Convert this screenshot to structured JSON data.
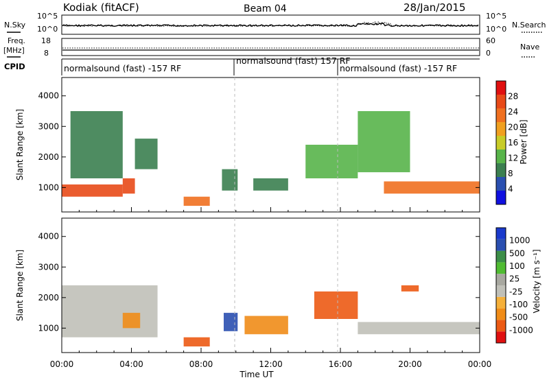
{
  "header": {
    "station": "Kodiak (fitACF)",
    "beam": "Beam 04",
    "date": "28/Jan/2015"
  },
  "panels": {
    "nsky": {
      "label": "N.Sky",
      "left_ticks": [
        "10^5",
        "10^0"
      ],
      "right_ticks": [
        "10^5",
        "10^0"
      ],
      "right_label": "N.Search"
    },
    "freq": {
      "label_line1": "Freq.",
      "label_line2": "[MHz]",
      "left_ticks": [
        "18",
        "8"
      ],
      "right_ticks": [
        "60",
        "0"
      ],
      "right_label": "Nave"
    },
    "cpid": {
      "label": "CPID",
      "segments": [
        {
          "text": "normalsound (fast) -157 RF",
          "start_hour": 0
        },
        {
          "text": "normalsound (fast) 157 RF",
          "start_hour": 10
        },
        {
          "text": "normalsound (fast) -157 RF",
          "start_hour": 16
        }
      ]
    }
  },
  "x_axis": {
    "label": "Time UT",
    "ticks": [
      "00:00",
      "04:00",
      "08:00",
      "12:00",
      "16:00",
      "20:00",
      "00:00"
    ]
  },
  "colors": {
    "power": [
      "#1010e0",
      "#2a4fb0",
      "#3b7f50",
      "#58b44a",
      "#c8cc28",
      "#f0a020",
      "#f07020",
      "#e84a18",
      "#e01010"
    ],
    "velocity": [
      "#e01010",
      "#ec5a14",
      "#f08c18",
      "#f5b03a",
      "#c0c0b8",
      "#a8a8a0",
      "#50bc32",
      "#3c8e48",
      "#2a4fb0",
      "#1a3acc"
    ]
  },
  "chart_data": [
    {
      "type": "heatmap",
      "title": "",
      "xlabel": "",
      "ylabel": "Slant Range [km]",
      "xlim": [
        0,
        24
      ],
      "ylim": [
        200,
        4600
      ],
      "y_ticks": [
        1000,
        2000,
        3000,
        4000
      ],
      "colorbar": {
        "label": "Power [dB]",
        "ticks": [
          4,
          8,
          12,
          16,
          20,
          24,
          28
        ],
        "range": [
          0,
          32
        ]
      },
      "features": [
        {
          "t": [
            0,
            3.5
          ],
          "range": [
            700,
            1100
          ],
          "value": 26
        },
        {
          "t": [
            3.5,
            4.2
          ],
          "range": [
            800,
            1300
          ],
          "value": 28
        },
        {
          "t": [
            4.2,
            5.5
          ],
          "range": [
            1600,
            2600
          ],
          "value": 10
        },
        {
          "t": [
            0.5,
            3.5
          ],
          "range": [
            1300,
            3500
          ],
          "value": 10
        },
        {
          "t": [
            7,
            8.5
          ],
          "range": [
            400,
            700
          ],
          "value": 22
        },
        {
          "t": [
            9.2,
            10.1
          ],
          "range": [
            900,
            1600
          ],
          "value": 8
        },
        {
          "t": [
            11,
            13
          ],
          "range": [
            900,
            1300
          ],
          "value": 8
        },
        {
          "t": [
            14,
            17
          ],
          "range": [
            1300,
            2400
          ],
          "value": 12
        },
        {
          "t": [
            17,
            20
          ],
          "range": [
            1500,
            3500
          ],
          "value": 14
        },
        {
          "t": [
            18.5,
            24
          ],
          "range": [
            800,
            1200
          ],
          "value": 24
        }
      ]
    },
    {
      "type": "heatmap",
      "title": "",
      "xlabel": "Time UT",
      "ylabel": "Slant Range [km]",
      "xlim": [
        0,
        24
      ],
      "ylim": [
        200,
        4600
      ],
      "y_ticks": [
        1000,
        2000,
        3000,
        4000
      ],
      "colorbar": {
        "label": "Velocity [m s⁻¹]",
        "ticks": [
          1000,
          500,
          100,
          25,
          -25,
          -100,
          -500,
          -1000
        ]
      },
      "features": [
        {
          "t": [
            0,
            5.5
          ],
          "range": [
            700,
            2400
          ],
          "value": 0
        },
        {
          "t": [
            3.5,
            4.5
          ],
          "range": [
            1000,
            1500
          ],
          "value": -200
        },
        {
          "t": [
            7,
            8.5
          ],
          "range": [
            400,
            700
          ],
          "value": -300
        },
        {
          "t": [
            9.3,
            10.1
          ],
          "range": [
            900,
            1500
          ],
          "value": 300
        },
        {
          "t": [
            10.5,
            13
          ],
          "range": [
            800,
            1400
          ],
          "value": -150
        },
        {
          "t": [
            14.5,
            17
          ],
          "range": [
            1300,
            2200
          ],
          "value": -400
        },
        {
          "t": [
            17,
            24
          ],
          "range": [
            800,
            1200
          ],
          "value": 0
        },
        {
          "t": [
            19.5,
            20.5
          ],
          "range": [
            2200,
            2400
          ],
          "value": -400
        }
      ]
    }
  ]
}
